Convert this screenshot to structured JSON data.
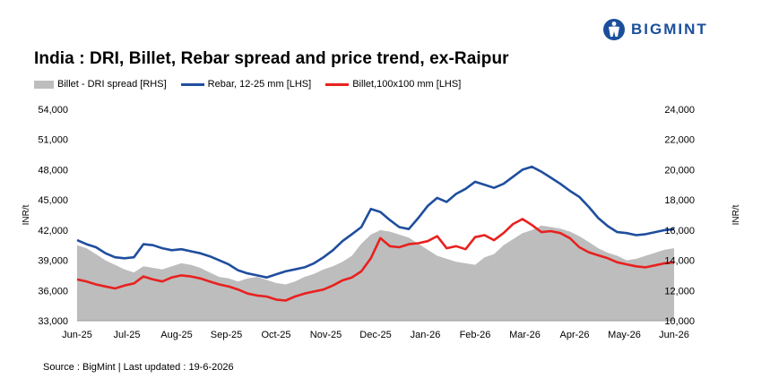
{
  "brand": {
    "name": "BIGMINT",
    "color": "#1b4f9c"
  },
  "title": "India : DRI, Billet, Rebar spread and price trend, ex-Raipur",
  "source": "Source : BigMint | Last updated : 19-6-2026",
  "chart_data": {
    "type": "line",
    "x_tick_labels": [
      "Jun-25",
      "Jul-25",
      "Aug-25",
      "Sep-25",
      "Oct-25",
      "Nov-25",
      "Dec-25",
      "Jan-26",
      "Feb-26",
      "Mar-26",
      "Apr-26",
      "May-26",
      "Jun-26"
    ],
    "ylabel_left": "INR/t",
    "ylabel_right": "INR/t",
    "ylim_left": [
      33000,
      54000
    ],
    "ylim_right": [
      10000,
      24000
    ],
    "yticks_left": [
      "33,000",
      "36,000",
      "39,000",
      "42,000",
      "45,000",
      "48,000",
      "51,000",
      "54,000"
    ],
    "yticks_right": [
      "10,000",
      "12,000",
      "14,000",
      "16,000",
      "18,000",
      "20,000",
      "22,000",
      "24,000"
    ],
    "legend_position": "top",
    "grid": false,
    "series": [
      {
        "name": "Billet - DRI spread  [RHS]",
        "axis": "right",
        "kind": "area",
        "color": "#bdbdbd",
        "values": [
          15000,
          14800,
          14400,
          14000,
          13700,
          13400,
          13200,
          13600,
          13500,
          13400,
          13600,
          13800,
          13700,
          13500,
          13200,
          12900,
          12800,
          12600,
          12800,
          12900,
          12700,
          12500,
          12400,
          12600,
          12900,
          13100,
          13400,
          13600,
          13900,
          14300,
          15100,
          15700,
          16000,
          15900,
          15700,
          15500,
          15100,
          14700,
          14300,
          14100,
          13900,
          13800,
          13700,
          14200,
          14400,
          15000,
          15400,
          15800,
          16000,
          16300,
          16200,
          16100,
          15900,
          15600,
          15200,
          14800,
          14500,
          14300,
          14000,
          14100,
          14300,
          14500,
          14700,
          14800
        ]
      },
      {
        "name": "Rebar, 12-25 mm [LHS]",
        "axis": "left",
        "kind": "line",
        "color": "#1f4e9e",
        "values": [
          41000,
          40600,
          40300,
          39700,
          39300,
          39200,
          39300,
          40600,
          40500,
          40200,
          40000,
          40100,
          39900,
          39700,
          39400,
          39000,
          38600,
          38000,
          37700,
          37500,
          37300,
          37600,
          37900,
          38100,
          38300,
          38700,
          39300,
          40000,
          40900,
          41600,
          42300,
          44100,
          43800,
          43000,
          42300,
          42100,
          43200,
          44400,
          45200,
          44800,
          45600,
          46100,
          46800,
          46500,
          46200,
          46600,
          47300,
          48000,
          48300,
          47800,
          47200,
          46600,
          45900,
          45300,
          44300,
          43200,
          42400,
          41800,
          41700,
          41500,
          41600,
          41800,
          42000,
          42100
        ]
      },
      {
        "name": "Billet,100x100 mm [LHS]",
        "axis": "left",
        "kind": "line",
        "color": "#e8211f",
        "values": [
          37100,
          36900,
          36600,
          36400,
          36200,
          36500,
          36700,
          37400,
          37100,
          36900,
          37300,
          37500,
          37400,
          37200,
          36900,
          36600,
          36400,
          36100,
          35700,
          35500,
          35400,
          35100,
          35000,
          35400,
          35700,
          35900,
          36100,
          36500,
          37000,
          37300,
          37900,
          39200,
          41200,
          40400,
          40300,
          40600,
          40700,
          40900,
          41400,
          40200,
          40400,
          40100,
          41300,
          41500,
          41000,
          41700,
          42600,
          43100,
          42500,
          41800,
          41900,
          41700,
          41200,
          40300,
          39800,
          39500,
          39200,
          38800,
          38600,
          38400,
          38300,
          38500,
          38700,
          38800
        ]
      }
    ]
  }
}
